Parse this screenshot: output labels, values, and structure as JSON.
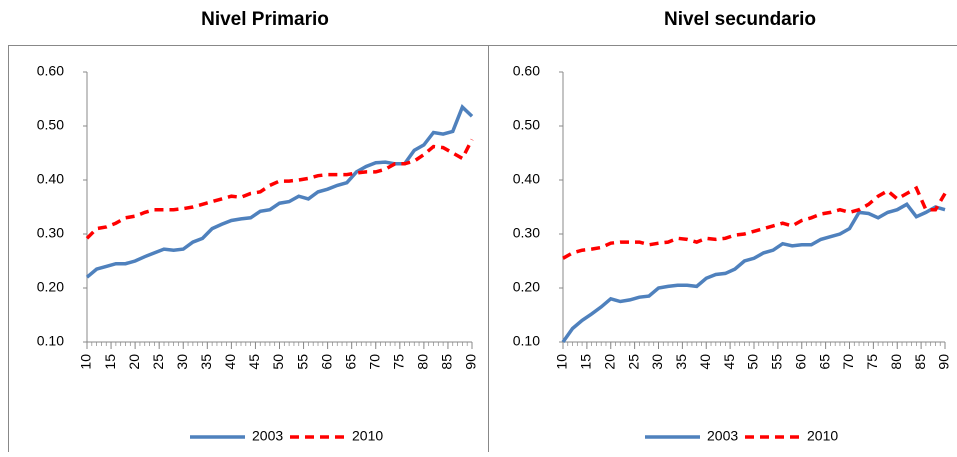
{
  "chart_data": [
    {
      "type": "line",
      "title": "Nivel Primario",
      "x": [
        10,
        12,
        14,
        16,
        18,
        20,
        22,
        24,
        26,
        28,
        30,
        32,
        34,
        36,
        38,
        40,
        42,
        44,
        46,
        48,
        50,
        52,
        54,
        56,
        58,
        60,
        62,
        64,
        66,
        68,
        70,
        72,
        74,
        76,
        78,
        80,
        82,
        84,
        86,
        88,
        90
      ],
      "series": [
        {
          "name": "2003",
          "color": "#4f81bd",
          "style": "solid",
          "values": [
            0.22,
            0.235,
            0.24,
            0.245,
            0.245,
            0.25,
            0.258,
            0.265,
            0.272,
            0.27,
            0.272,
            0.285,
            0.292,
            0.31,
            0.318,
            0.325,
            0.328,
            0.33,
            0.342,
            0.345,
            0.357,
            0.36,
            0.37,
            0.365,
            0.378,
            0.383,
            0.39,
            0.395,
            0.415,
            0.425,
            0.432,
            0.433,
            0.43,
            0.43,
            0.455,
            0.465,
            0.488,
            0.485,
            0.49,
            0.535,
            0.518
          ]
        },
        {
          "name": "2010",
          "color": "#ff0000",
          "style": "dashed",
          "values": [
            0.292,
            0.31,
            0.313,
            0.32,
            0.33,
            0.333,
            0.34,
            0.345,
            0.345,
            0.345,
            0.347,
            0.35,
            0.355,
            0.36,
            0.365,
            0.37,
            0.368,
            0.375,
            0.378,
            0.39,
            0.398,
            0.398,
            0.4,
            0.403,
            0.408,
            0.41,
            0.41,
            0.41,
            0.413,
            0.415,
            0.415,
            0.42,
            0.43,
            0.43,
            0.435,
            0.447,
            0.462,
            0.46,
            0.45,
            0.44,
            0.475
          ]
        }
      ],
      "xlim": [
        10,
        90
      ],
      "xticks": [
        10,
        15,
        20,
        25,
        30,
        35,
        40,
        45,
        50,
        55,
        60,
        65,
        70,
        75,
        80,
        85,
        90
      ],
      "ylim": [
        0.1,
        0.6
      ],
      "yticks": [
        {
          "value": 0.1,
          "label": "0.10"
        },
        {
          "value": 0.2,
          "label": "0.20"
        },
        {
          "value": 0.3,
          "label": "0.30"
        },
        {
          "value": 0.4,
          "label": "0.40"
        },
        {
          "value": 0.5,
          "label": "0.50"
        },
        {
          "value": 0.6,
          "label": "0.60"
        }
      ],
      "legend": "bottom"
    },
    {
      "type": "line",
      "title": "Nivel secundario",
      "x": [
        10,
        12,
        14,
        16,
        18,
        20,
        22,
        24,
        26,
        28,
        30,
        32,
        34,
        36,
        38,
        40,
        42,
        44,
        46,
        48,
        50,
        52,
        54,
        56,
        58,
        60,
        62,
        64,
        66,
        68,
        70,
        72,
        74,
        76,
        78,
        80,
        82,
        84,
        86,
        88,
        90
      ],
      "series": [
        {
          "name": "2003",
          "color": "#4f81bd",
          "style": "solid",
          "values": [
            0.1,
            0.125,
            0.14,
            0.152,
            0.165,
            0.18,
            0.175,
            0.178,
            0.183,
            0.185,
            0.2,
            0.203,
            0.205,
            0.205,
            0.203,
            0.218,
            0.225,
            0.227,
            0.235,
            0.25,
            0.255,
            0.265,
            0.27,
            0.282,
            0.278,
            0.28,
            0.28,
            0.29,
            0.295,
            0.3,
            0.31,
            0.34,
            0.338,
            0.33,
            0.34,
            0.345,
            0.355,
            0.332,
            0.34,
            0.35,
            0.345
          ]
        },
        {
          "name": "2010",
          "color": "#ff0000",
          "style": "dashed",
          "values": [
            0.255,
            0.265,
            0.27,
            0.272,
            0.275,
            0.283,
            0.285,
            0.285,
            0.285,
            0.28,
            0.283,
            0.285,
            0.292,
            0.29,
            0.285,
            0.292,
            0.29,
            0.292,
            0.298,
            0.3,
            0.305,
            0.31,
            0.315,
            0.32,
            0.315,
            0.325,
            0.33,
            0.337,
            0.34,
            0.345,
            0.34,
            0.345,
            0.355,
            0.37,
            0.38,
            0.365,
            0.375,
            0.385,
            0.345,
            0.345,
            0.375
          ]
        }
      ],
      "xlim": [
        10,
        90
      ],
      "xticks": [
        10,
        15,
        20,
        25,
        30,
        35,
        40,
        45,
        50,
        55,
        60,
        65,
        70,
        75,
        80,
        85,
        90
      ],
      "ylim": [
        0.1,
        0.6
      ],
      "yticks": [
        {
          "value": 0.1,
          "label": "0.10"
        },
        {
          "value": 0.2,
          "label": "0.20"
        },
        {
          "value": 0.3,
          "label": "0.30"
        },
        {
          "value": 0.4,
          "label": "0.40"
        },
        {
          "value": 0.5,
          "label": "0.50"
        },
        {
          "value": 0.6,
          "label": "0.60"
        }
      ],
      "legend": "bottom"
    }
  ]
}
